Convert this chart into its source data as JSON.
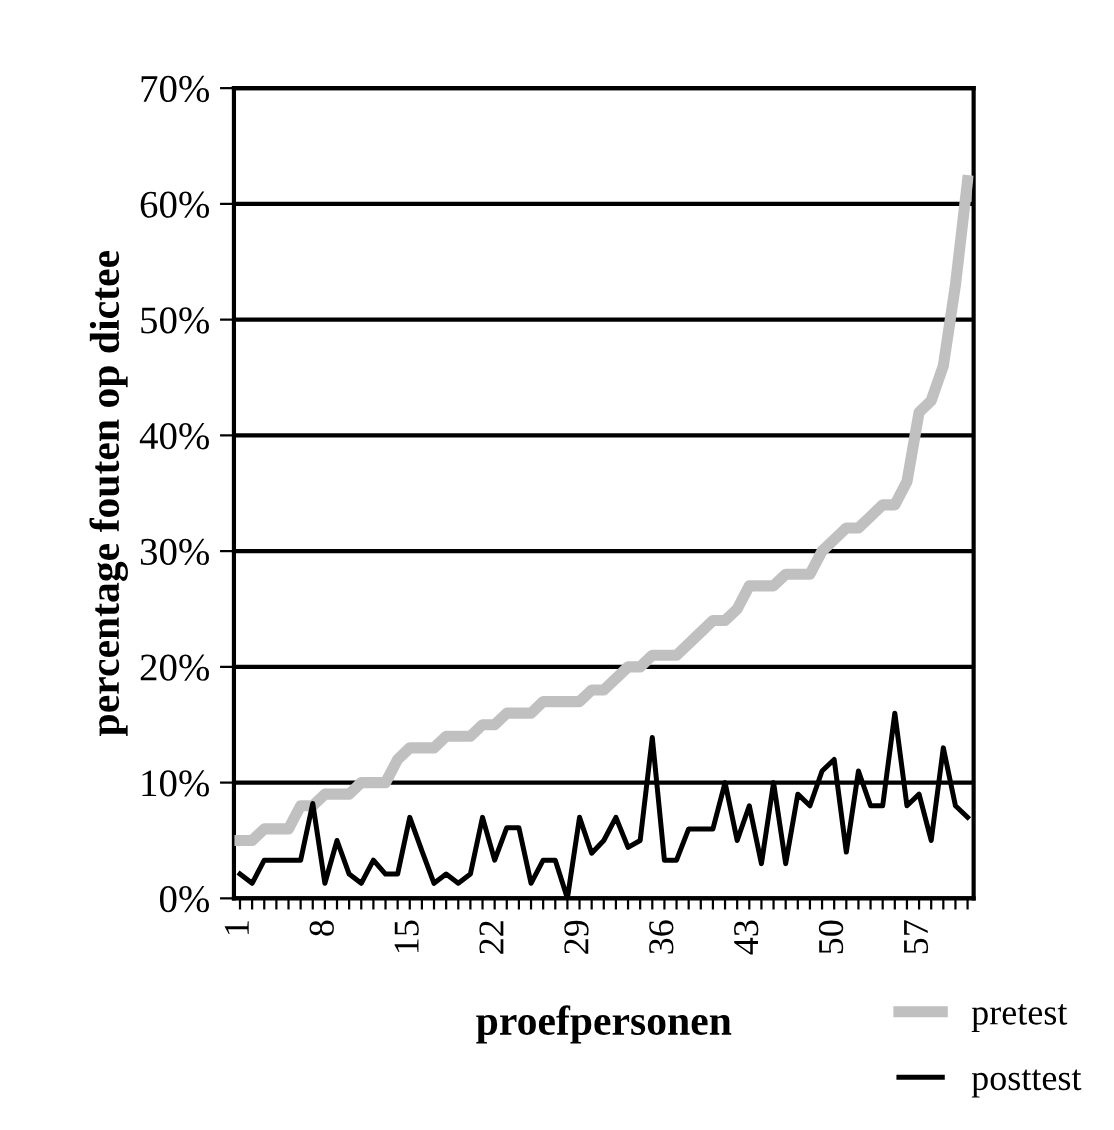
{
  "chart_data": {
    "type": "line",
    "xlabel": "proefpersonen",
    "ylabel": "percentage fouten op dictee",
    "categories": [
      "1",
      null,
      null,
      null,
      null,
      null,
      null,
      "8",
      null,
      null,
      null,
      null,
      null,
      null,
      "15",
      null,
      null,
      null,
      null,
      null,
      null,
      "22",
      null,
      null,
      null,
      null,
      null,
      null,
      "29",
      null,
      null,
      null,
      null,
      null,
      null,
      "36",
      null,
      null,
      null,
      null,
      null,
      null,
      "43",
      null,
      null,
      null,
      null,
      null,
      null,
      "50",
      null,
      null,
      null,
      null,
      null,
      null,
      "57",
      null,
      null,
      null,
      null
    ],
    "series": [
      {
        "name": "pretest",
        "color": "#c0c0c0",
        "values": [
          5,
          5,
          6,
          6,
          6,
          8,
          8,
          9,
          9,
          9,
          10,
          10,
          10,
          12,
          13,
          13,
          13,
          14,
          14,
          14,
          15,
          15,
          16,
          16,
          16,
          17,
          17,
          17,
          17,
          18,
          18,
          19,
          20,
          20,
          21,
          21,
          21,
          22,
          23,
          24,
          24,
          25,
          27,
          27,
          27,
          28,
          28,
          28,
          30,
          31,
          32,
          32,
          33,
          34,
          34,
          36,
          42,
          43,
          46,
          53,
          62
        ]
      },
      {
        "name": "posttest",
        "color": "#000000",
        "values": [
          2.1,
          1.3,
          3.3,
          3.3,
          3.3,
          3.3,
          8.2,
          1.3,
          5,
          2.1,
          1.3,
          3.3,
          2.1,
          2.1,
          7,
          4.1,
          1.3,
          2.1,
          1.3,
          2.1,
          7,
          3.3,
          6.1,
          6.1,
          1.3,
          3.3,
          3.3,
          0,
          7,
          3.9,
          5,
          7,
          4.4,
          5,
          13.9,
          3.3,
          3.3,
          6,
          6,
          6,
          10,
          5,
          8,
          3,
          10,
          3,
          9,
          8,
          11,
          12,
          4,
          11,
          8,
          8,
          16,
          8,
          9,
          5,
          13,
          8,
          7
        ]
      }
    ],
    "ylim": [
      0,
      70
    ],
    "yticks": [
      {
        "value": 0,
        "label": "0%"
      },
      {
        "value": 10,
        "label": "10%"
      },
      {
        "value": 20,
        "label": "20%"
      },
      {
        "value": 30,
        "label": "30%"
      },
      {
        "value": 40,
        "label": "40%"
      },
      {
        "value": 50,
        "label": "50%"
      },
      {
        "value": 60,
        "label": "60%"
      },
      {
        "value": 70,
        "label": "70%"
      }
    ],
    "grid": "y",
    "legend": "bottom right",
    "marker": "none",
    "line_style": "solid"
  }
}
